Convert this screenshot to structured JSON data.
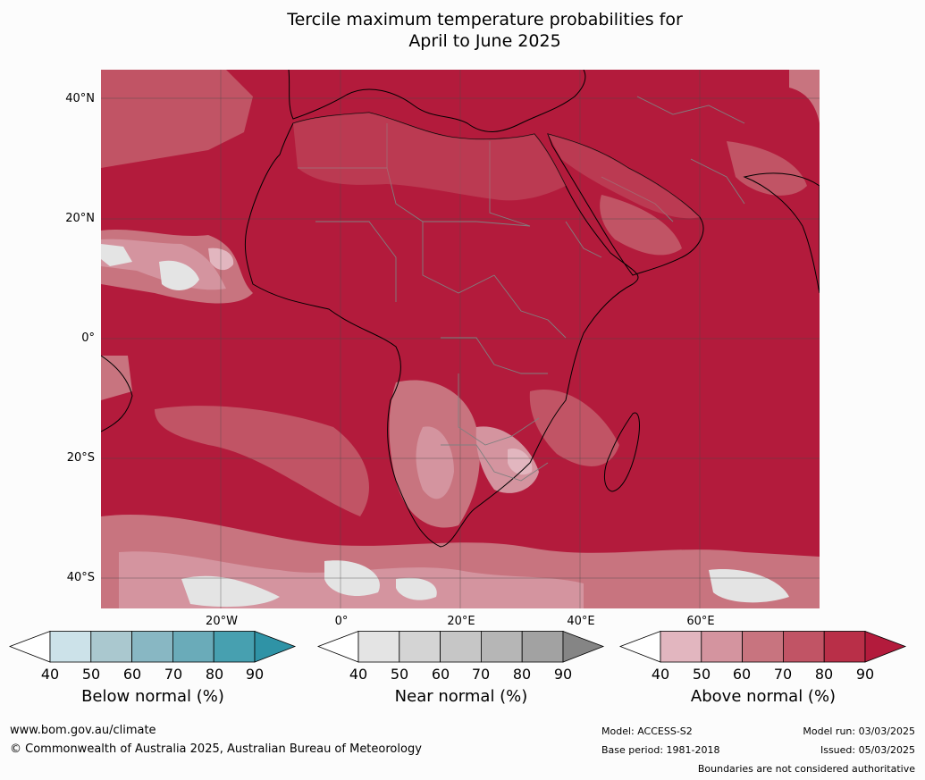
{
  "title_line1": "Tercile maximum temperature probabilities for",
  "title_line2": "April to June 2025",
  "latitude_labels": [
    "40°N",
    "20°N",
    "0°",
    "20°S",
    "40°S"
  ],
  "longitude_labels": [
    "20°W",
    "0°",
    "20°E",
    "40°E",
    "60°E"
  ],
  "legends": [
    {
      "title": "Below normal (%)",
      "ticks": [
        "40",
        "50",
        "60",
        "70",
        "80",
        "90"
      ],
      "colors": [
        "#ffffff",
        "#cce2e9",
        "#aac8cf",
        "#88b7c3",
        "#6aabb9",
        "#47a0b0",
        "#2f93a6"
      ]
    },
    {
      "title": "Near normal (%)",
      "ticks": [
        "40",
        "50",
        "60",
        "70",
        "80",
        "90"
      ],
      "colors": [
        "#ffffff",
        "#e4e4e4",
        "#d4d4d4",
        "#c6c6c6",
        "#b6b6b6",
        "#a2a2a2",
        "#858585"
      ]
    },
    {
      "title": "Above normal (%)",
      "ticks": [
        "40",
        "50",
        "60",
        "70",
        "80",
        "90"
      ],
      "colors": [
        "#ffffff",
        "#e2b6bf",
        "#d4949f",
        "#c8747f",
        "#c15465",
        "#b92f48",
        "#b31b3c"
      ]
    }
  ],
  "footer": {
    "website": "www.bom.gov.au/climate",
    "copyright": "© Commonwealth of Australia 2025, Australian Bureau of Meteorology",
    "model": "Model: ACCESS-S2",
    "base_period": "Base period: 1981-2018",
    "model_run": "Model run: 03/03/2025",
    "issued": "Issued: 05/03/2025",
    "disclaimer": "Boundaries are not considered authoritative"
  }
}
